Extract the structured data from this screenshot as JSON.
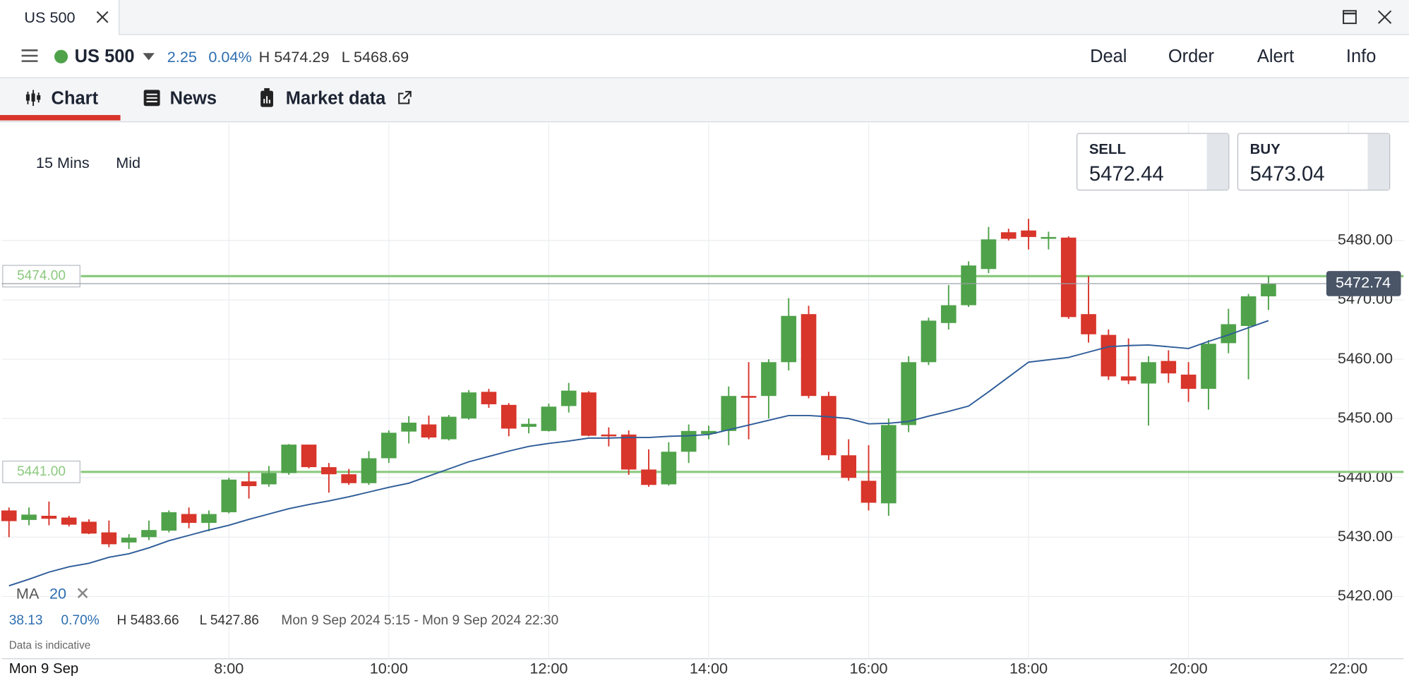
{
  "window": {
    "tab": "US 500"
  },
  "toolbar": {
    "market": "US 500",
    "change": "2.25",
    "change_pct": "0.04%",
    "high": "H 5474.29",
    "low": "L 5468.69",
    "actions": [
      "Deal",
      "Order",
      "Alert",
      "Info"
    ]
  },
  "tabs": [
    "Chart",
    "News",
    "Market data"
  ],
  "chart_controls": {
    "interval": "15 Mins",
    "price": "Mid"
  },
  "quotes": {
    "sell_label": "SELL",
    "sell": "5472.44",
    "buy_label": "BUY",
    "buy": "5473.04"
  },
  "stats": {
    "change": "38.13",
    "change_pct": "0.70%",
    "high": "H 5483.66",
    "low": "L 5427.86",
    "range": "Mon 9 Sep 2024 5:15 - Mon 9 Sep 2024 22:30"
  },
  "note": "Data is indicative",
  "date_label": "Mon 9 Sep",
  "chart_data": {
    "type": "candlestick",
    "x": [
      5.25,
      5.5,
      5.75,
      6,
      6.25,
      6.5,
      6.75,
      7,
      7.25,
      7.5,
      7.75,
      8,
      8.25,
      8.5,
      8.75,
      9,
      9.25,
      9.5,
      9.75,
      10,
      10.25,
      10.5,
      10.75,
      11,
      11.25,
      11.5,
      11.75,
      12,
      12.25,
      12.5,
      12.75,
      13,
      13.25,
      13.5,
      13.75,
      14,
      14.25,
      14.5,
      14.75,
      15,
      15.25,
      15.5,
      15.75,
      16,
      16.25,
      16.5,
      16.75,
      17,
      17.25,
      17.5,
      17.75,
      18,
      18.25,
      18.5,
      18.75,
      19,
      19.25,
      19.5,
      19.75,
      20,
      20.25,
      20.5,
      20.75,
      21
    ],
    "open": [
      5434.5,
      5432.9,
      5433.6,
      5433.3,
      5432.6,
      5430.8,
      5429.1,
      5430,
      5431.1,
      5433.9,
      5432.4,
      5434.2,
      5439.4,
      5438.9,
      5440.8,
      5445.6,
      5441.8,
      5440.6,
      5439.1,
      5443.3,
      5447.8,
      5449,
      5446.5,
      5450,
      5454.5,
      5452.3,
      5448.6,
      5447.9,
      5452.1,
      5454.4,
      5447.3,
      5447.3,
      5441.4,
      5438.9,
      5444.4,
      5447.4,
      5447.9,
      5453.8,
      5453.8,
      5459.5,
      5467.6,
      5453.8,
      5443.8,
      5439.5,
      5435.7,
      5448.9,
      5459.5,
      5466.1,
      5469.1,
      5475.2,
      5481.4,
      5481.7,
      5480.3,
      5480.5,
      5467.6,
      5464.1,
      5457.1,
      5455.9,
      5459.7,
      5457.4,
      5455,
      5462.7,
      5465.6,
      5470.6
    ],
    "high": [
      5435,
      5435,
      5436,
      5433.6,
      5433,
      5432.8,
      5430.5,
      5432.8,
      5434.5,
      5435,
      5434.5,
      5440,
      5441,
      5442,
      5445.7,
      5445.6,
      5442.5,
      5441.5,
      5444.5,
      5448,
      5450.4,
      5450.5,
      5450.6,
      5454.8,
      5455,
      5452.6,
      5450,
      5452.5,
      5456,
      5454.6,
      5448.5,
      5448,
      5444.8,
      5446,
      5449,
      5448.8,
      5455.4,
      5459.5,
      5460,
      5470.3,
      5469,
      5454.5,
      5446.5,
      5445.5,
      5450,
      5460.5,
      5467,
      5472.5,
      5476.5,
      5482.3,
      5482,
      5483.66,
      5481.5,
      5480.7,
      5474,
      5465,
      5463.5,
      5460.5,
      5461.5,
      5459.5,
      5463.2,
      5468.5,
      5471,
      5474
    ],
    "low": [
      5430,
      5432,
      5432,
      5431.8,
      5430.5,
      5428.3,
      5428,
      5429.5,
      5430.8,
      5431.5,
      5431,
      5434,
      5436.5,
      5438.5,
      5440.5,
      5441.6,
      5437.5,
      5438.8,
      5438.8,
      5442.5,
      5445.8,
      5446.5,
      5446.3,
      5449.8,
      5451.8,
      5447,
      5447.5,
      5447.8,
      5451,
      5447,
      5445.3,
      5440.5,
      5438.5,
      5438.7,
      5442.5,
      5446.5,
      5445.5,
      5446.5,
      5450,
      5458.1,
      5453.4,
      5443,
      5439.5,
      5434.5,
      5433.6,
      5447.7,
      5459,
      5465,
      5468.8,
      5474.5,
      5480,
      5478.5,
      5478.5,
      5466.8,
      5462.8,
      5456.5,
      5455.8,
      5448.8,
      5456,
      5452.8,
      5451.5,
      5461,
      5456.6,
      5468.3
    ],
    "close": [
      5432.7,
      5433.8,
      5433.1,
      5432.1,
      5430.6,
      5428.8,
      5429.9,
      5431.2,
      5434.2,
      5432.4,
      5433.9,
      5439.7,
      5438.6,
      5440.8,
      5445.6,
      5441.8,
      5440.6,
      5439.1,
      5443.3,
      5447.6,
      5449.3,
      5446.8,
      5450.3,
      5454.4,
      5452.4,
      5448.3,
      5449.1,
      5452,
      5454.7,
      5447.1,
      5447,
      5441.4,
      5438.8,
      5444.4,
      5447.9,
      5447.9,
      5453.8,
      5453.5,
      5459.5,
      5467.3,
      5453.8,
      5443.8,
      5440,
      5435.8,
      5448.9,
      5459.5,
      5466.5,
      5469.1,
      5475.8,
      5480.2,
      5480.3,
      5480.6,
      5480.6,
      5467.1,
      5464.2,
      5457.1,
      5456.4,
      5459.5,
      5457.6,
      5455,
      5462.6,
      5465.9,
      5470.6,
      5472.74
    ],
    "up_color": "#4fa24a",
    "down_color": "#d8352b",
    "ma": {
      "name": "MA",
      "period": 20,
      "color": "#2e5c98",
      "values": [
        5421.8,
        5422.9,
        5424.1,
        5425,
        5425.6,
        5426.6,
        5427.2,
        5428.2,
        5429.4,
        5430.3,
        5431.2,
        5432,
        5433,
        5433.9,
        5434.8,
        5435.5,
        5436.1,
        5436.8,
        5437.6,
        5438.4,
        5439.1,
        5440.3,
        5441.5,
        5442.7,
        5443.6,
        5444.5,
        5445.3,
        5445.8,
        5446.2,
        5446.7,
        5446.7,
        5446.8,
        5446.8,
        5447,
        5447.1,
        5447.3,
        5448.1,
        5448.9,
        5449.7,
        5450.5,
        5450.5,
        5450.3,
        5450,
        5449.1,
        5449.2,
        5449.5,
        5450.4,
        5451.2,
        5452.1,
        5454.5,
        5457,
        5459.5,
        5459.9,
        5460.3,
        5461.2,
        5462.1,
        5462.3,
        5462.4,
        5462.1,
        5461.8,
        5463,
        5464.1,
        5465.3,
        5466.5
      ]
    },
    "xlim": [
      5.16,
      22.69
    ],
    "ylim": [
      5409.5,
      5499.8
    ],
    "xticks": [
      {
        "value": 8,
        "label": "8:00"
      },
      {
        "value": 10,
        "label": "10:00"
      },
      {
        "value": 12,
        "label": "12:00"
      },
      {
        "value": 14,
        "label": "14:00"
      },
      {
        "value": 16,
        "label": "16:00"
      },
      {
        "value": 18,
        "label": "18:00"
      },
      {
        "value": 20,
        "label": "20:00"
      },
      {
        "value": 22,
        "label": "22:00"
      }
    ],
    "yticks": [
      {
        "value": 5420,
        "label": "5420.00"
      },
      {
        "value": 5430,
        "label": "5430.00"
      },
      {
        "value": 5440,
        "label": "5440.00"
      },
      {
        "value": 5450,
        "label": "5450.00"
      },
      {
        "value": 5460,
        "label": "5460.00"
      },
      {
        "value": 5470,
        "label": "5470.00"
      },
      {
        "value": 5480,
        "label": "5480.00"
      }
    ],
    "grid": true,
    "levels": [
      {
        "value": 5474,
        "label": "5474.00",
        "color": "#8cc97f"
      },
      {
        "value": 5441,
        "label": "5441.00",
        "color": "#8cc97f"
      }
    ],
    "last_price": {
      "value": 5472.74,
      "label": "5472.74"
    }
  }
}
